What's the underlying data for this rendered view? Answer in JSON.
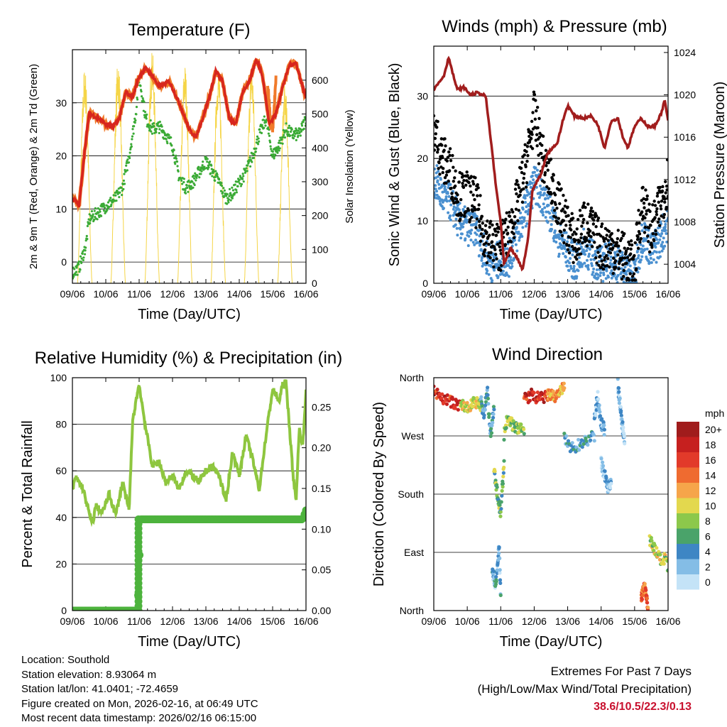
{
  "chart_data": [
    {
      "type": "line",
      "title": "Temperature (F)",
      "xlabel": "Time (Day/UTC)",
      "ylabel": "2m & 9m T (Red, Orange) & 2m Td (Green)",
      "ylabel_right": "Solar Insolation (Yellow)",
      "x_ticks": [
        "09/06",
        "10/06",
        "11/06",
        "12/06",
        "13/06",
        "14/06",
        "15/06",
        "16/06"
      ],
      "ylim": [
        -4,
        40
      ],
      "y_ticks": [
        0,
        10,
        20,
        30
      ],
      "ylim_right": [
        0,
        690
      ],
      "y_ticks_right": [
        0,
        100,
        200,
        300,
        400,
        500,
        600
      ],
      "colors": {
        "temp_2m": "#d7261e",
        "temp_9m": "#f07a2a",
        "dewpoint": "#3aaa35",
        "solar": "#f5d547"
      },
      "series": [
        {
          "name": "2m T",
          "x": [
            0,
            0.1,
            0.2,
            0.35,
            0.5,
            0.8,
            1.0,
            1.2,
            1.4,
            1.6,
            1.8,
            2.0,
            2.2,
            2.4,
            2.6,
            2.9,
            3.2,
            3.5,
            3.7,
            3.9,
            4.1,
            4.3,
            4.5,
            4.7,
            4.9,
            5.1,
            5.3,
            5.5,
            5.6,
            5.7,
            5.9,
            6.1,
            6.3,
            6.5,
            6.7,
            6.9,
            7.0
          ],
          "values": [
            12,
            11.5,
            10.5,
            20,
            28,
            27,
            26,
            25.5,
            27,
            32,
            31,
            35,
            36.5,
            35,
            33,
            34,
            30,
            25,
            23.5,
            27,
            31,
            36,
            34,
            27,
            26,
            32,
            34,
            38,
            37,
            35,
            26,
            28,
            33,
            37,
            37.5,
            33,
            31
          ]
        },
        {
          "name": "9m T",
          "x": [
            5.85,
            5.9,
            5.95,
            6.0,
            6.05,
            6.1
          ],
          "values": [
            33,
            30,
            26,
            25.5,
            29,
            34
          ]
        },
        {
          "name": "2m Td",
          "x": [
            0,
            0.2,
            0.4,
            0.5,
            0.7,
            0.9,
            1.1,
            1.3,
            1.5,
            1.7,
            1.9,
            2.0,
            2.2,
            2.4,
            2.6,
            2.8,
            3.0,
            3.2,
            3.4,
            3.6,
            3.8,
            4.0,
            4.2,
            4.4,
            4.6,
            4.8,
            5.0,
            5.2,
            5.4,
            5.6,
            5.8,
            6.0,
            6.2,
            6.4,
            6.6,
            6.8,
            7.0
          ],
          "values": [
            -2,
            -1,
            3,
            8,
            9,
            10,
            11,
            12,
            14,
            20,
            28,
            35,
            27,
            25,
            25.5,
            24,
            22,
            16,
            14,
            15,
            17,
            19,
            17,
            15,
            12,
            13,
            15,
            17,
            20,
            24,
            27,
            20,
            22,
            25,
            24,
            24,
            27
          ]
        },
        {
          "name": "Solar Insolation",
          "peaks": [
            0.37,
            1.37,
            2.39,
            3.37,
            4.37,
            5.37,
            6.37
          ],
          "peak_values": [
            640,
            660,
            690,
            650,
            640,
            650,
            590
          ]
        }
      ]
    },
    {
      "type": "scatter",
      "title": "Winds (mph) & Pressure (mb)",
      "xlabel": "Time (Day/UTC)",
      "ylabel": "Sonic Wind & Gust (Blue, Black)",
      "ylabel_right": "Station Pressure (Maroon)",
      "x_ticks": [
        "09/06",
        "10/06",
        "11/06",
        "12/06",
        "13/06",
        "14/06",
        "15/06",
        "16/06"
      ],
      "ylim": [
        0,
        38
      ],
      "y_ticks": [
        0,
        10,
        20,
        30
      ],
      "ylim_right": [
        1002.2,
        1024.6
      ],
      "y_ticks_right": [
        1004,
        1008,
        1012,
        1016,
        1020,
        1024
      ],
      "colors": {
        "wind": "#4a90d0",
        "gust": "#000000",
        "pressure": "#a11d1d"
      },
      "series": [
        {
          "name": "Sonic Wind",
          "x": [
            0,
            0.25,
            0.5,
            0.75,
            1.0,
            1.25,
            1.5,
            1.75,
            2.0,
            2.25,
            2.5,
            2.75,
            3.0,
            3.25,
            3.5,
            3.75,
            4.0,
            4.25,
            4.5,
            4.75,
            5.0,
            5.25,
            5.5,
            5.75,
            6.0,
            6.1,
            6.25,
            6.5,
            6.75,
            7.0
          ],
          "values": [
            17,
            14,
            13,
            10,
            9,
            9,
            5,
            3,
            4,
            4,
            8,
            12,
            16,
            14,
            11,
            7,
            5,
            3,
            6,
            4,
            3,
            4,
            3,
            2,
            1,
            4,
            8,
            5,
            7,
            10
          ]
        },
        {
          "name": "Gust",
          "x": [
            0,
            0.25,
            0.5,
            0.75,
            1.0,
            1.25,
            1.5,
            1.75,
            2.0,
            2.25,
            2.5,
            2.75,
            3.0,
            3.25,
            3.5,
            3.75,
            4.0,
            4.25,
            4.5,
            4.75,
            5.0,
            5.25,
            5.5,
            5.75,
            6.0,
            6.1,
            6.25,
            6.5,
            6.75,
            7.0
          ],
          "values": [
            25,
            20,
            18,
            14,
            14,
            13,
            8,
            6,
            6,
            8,
            13,
            19,
            27,
            20,
            16,
            12,
            9,
            6,
            10,
            8,
            6,
            6,
            5,
            4,
            2,
            8,
            13,
            8,
            12,
            17
          ]
        },
        {
          "name": "Station Pressure",
          "x": [
            0,
            0.3,
            0.45,
            0.55,
            0.7,
            0.9,
            1.1,
            1.3,
            1.55,
            1.75,
            1.85,
            2.0,
            2.1,
            2.3,
            2.5,
            2.65,
            2.8,
            2.95,
            3.2,
            3.4,
            3.7,
            3.85,
            4.0,
            4.2,
            4.5,
            4.7,
            4.9,
            5.1,
            5.3,
            5.5,
            5.65,
            5.8,
            6.0,
            6.2,
            6.4,
            6.6,
            6.8,
            6.9,
            7.0
          ],
          "values": [
            1020.5,
            1021.8,
            1023.6,
            1022.2,
            1020.5,
            1020.7,
            1020.0,
            1020.2,
            1019.9,
            1014.5,
            1011.5,
            1008.0,
            1004.0,
            1005.5,
            1004.5,
            1003.5,
            1006.0,
            1011.0,
            1012.5,
            1014.5,
            1015.5,
            1017.5,
            1019.0,
            1018.0,
            1017.8,
            1018.0,
            1017.2,
            1015.0,
            1017.5,
            1017.8,
            1016.0,
            1015.0,
            1017.0,
            1017.8,
            1017.0,
            1017.0,
            1018.3,
            1019.5,
            1017.5
          ]
        }
      ]
    },
    {
      "type": "line",
      "title": "Relative Humidity (%) & Precipitation (in)",
      "xlabel": "Time (Day/UTC)",
      "ylabel": "Percent & Total Rainfall",
      "x_ticks": [
        "09/06",
        "10/06",
        "11/06",
        "12/06",
        "13/06",
        "14/06",
        "15/06",
        "16/06"
      ],
      "ylim": [
        0,
        100
      ],
      "y_ticks": [
        0,
        20,
        40,
        60,
        80,
        100
      ],
      "ylim_right": [
        0,
        0.286
      ],
      "y_ticks_right": [
        "0.00",
        "0.05",
        "0.10",
        "0.15",
        "0.20",
        "0.25"
      ],
      "colors": {
        "humidity": "#8ec63f",
        "rainfall": "#4db33d"
      },
      "series": [
        {
          "name": "Relative Humidity",
          "x": [
            0,
            0.1,
            0.3,
            0.5,
            0.6,
            0.7,
            0.9,
            1.1,
            1.3,
            1.5,
            1.7,
            1.8,
            1.9,
            2.0,
            2.2,
            2.4,
            2.6,
            2.8,
            3.0,
            3.2,
            3.4,
            3.6,
            3.8,
            4.0,
            4.2,
            4.4,
            4.6,
            4.8,
            5.0,
            5.2,
            5.4,
            5.6,
            5.8,
            6.0,
            6.2,
            6.3,
            6.4,
            6.5,
            6.6,
            6.7,
            6.8,
            6.9,
            7.0
          ],
          "values": [
            52,
            57,
            53,
            42,
            37,
            45,
            42,
            50,
            41,
            55,
            43,
            80,
            90,
            97,
            78,
            62,
            64,
            55,
            58,
            52,
            60,
            58,
            55,
            60,
            62,
            58,
            47,
            68,
            58,
            75,
            65,
            52,
            75,
            95,
            90,
            97,
            98,
            80,
            60,
            47,
            78,
            70,
            95
          ]
        },
        {
          "name": "Total Rainfall",
          "x": [
            0,
            1.95,
            1.98,
            2.05,
            2.5,
            6.9,
            7.0
          ],
          "values": [
            0,
            0,
            0.03,
            0.112,
            0.112,
            0.112,
            0.123
          ]
        }
      ]
    },
    {
      "type": "scatter",
      "title": "Wind Direction",
      "xlabel": "Time (Day/UTC)",
      "ylabel": "Direction (Colored By Speed)",
      "x_ticks": [
        "09/06",
        "10/06",
        "11/06",
        "12/06",
        "13/06",
        "14/06",
        "15/06",
        "16/06"
      ],
      "y_ticks": [
        "North",
        "East",
        "South",
        "West",
        "North"
      ],
      "legend_title": "mph",
      "legend_labels": [
        "20+",
        "18",
        "16",
        "14",
        "12",
        "10",
        "8",
        "6",
        "4",
        "2",
        "0"
      ],
      "legend_colors": [
        "#a01c1c",
        "#c6201f",
        "#e23a2a",
        "#ef6b30",
        "#f6a54a",
        "#e3d84e",
        "#8cc84b",
        "#4aa36a",
        "#3e86c4",
        "#84bde6",
        "#c4e3f7"
      ],
      "segments": [
        {
          "x": [
            0.0,
            0.2,
            0.4,
            0.6,
            0.8
          ],
          "values": [
            338,
            332,
            325,
            320,
            318
          ],
          "speed": 17
        },
        {
          "x": [
            0.8,
            1.0,
            1.2,
            1.4
          ],
          "values": [
            318,
            315,
            322,
            318
          ],
          "speed": 10
        },
        {
          "x": [
            1.4,
            1.5,
            1.6,
            1.7,
            1.8
          ],
          "values": [
            330,
            300,
            340,
            270,
            310
          ],
          "speed": 4
        },
        {
          "x": [
            1.8,
            1.9,
            2.0,
            2.1
          ],
          "values": [
            220,
            180,
            150,
            230
          ],
          "speed": 7
        },
        {
          "x": [
            1.75,
            1.85,
            1.95,
            2.0
          ],
          "values": [
            60,
            40,
            100,
            20
          ],
          "speed": 3
        },
        {
          "x": [
            2.1,
            2.2,
            2.3,
            2.5,
            2.7
          ],
          "values": [
            270,
            300,
            290,
            280,
            282
          ],
          "speed": 8
        },
        {
          "x": [
            2.7,
            2.8,
            2.9,
            3.0,
            3.2,
            3.4
          ],
          "values": [
            330,
            325,
            335,
            330,
            328,
            332
          ],
          "speed": 17
        },
        {
          "x": [
            3.4,
            3.6,
            3.8,
            3.9
          ],
          "values": [
            335,
            330,
            340,
            345
          ],
          "speed": 12
        },
        {
          "x": [
            3.9,
            4.0,
            4.2,
            4.4,
            4.6,
            4.8
          ],
          "values": [
            270,
            255,
            250,
            260,
            265,
            270
          ],
          "speed": 4
        },
        {
          "x": [
            4.8,
            4.9,
            5.0,
            5.1
          ],
          "values": [
            300,
            330,
            290,
            280
          ],
          "speed": 2
        },
        {
          "x": [
            5.0,
            5.1,
            5.2,
            5.3
          ],
          "values": [
            230,
            210,
            190,
            200
          ],
          "speed": 2
        },
        {
          "x": [
            5.5,
            5.6,
            5.7
          ],
          "values": [
            350,
            300,
            260
          ],
          "speed": 2
        },
        {
          "x": [
            6.2,
            6.3,
            6.4
          ],
          "values": [
            20,
            40,
            5
          ],
          "speed": 14
        },
        {
          "x": [
            6.45,
            6.6,
            6.7,
            6.8,
            6.9,
            7.0
          ],
          "values": [
            110,
            95,
            85,
            75,
            80,
            65
          ],
          "speed": 9
        }
      ]
    }
  ],
  "info": {
    "location": "Location: Southold",
    "elevation": "Station elevation: 8.93064 m",
    "latlon": "Station lat/lon: 41.0401; -72.4659",
    "created": "Figure created on Mon, 2026-02-16, at 06:49 UTC",
    "recent": "Most recent data timestamp: 2026/02/16 06:15:00"
  },
  "extremes": {
    "line1": "Extremes For Past 7 Days",
    "line2": "(High/Low/Max Wind/Total Precipitation)",
    "values": "38.6/10.5/22.3/0.13"
  }
}
